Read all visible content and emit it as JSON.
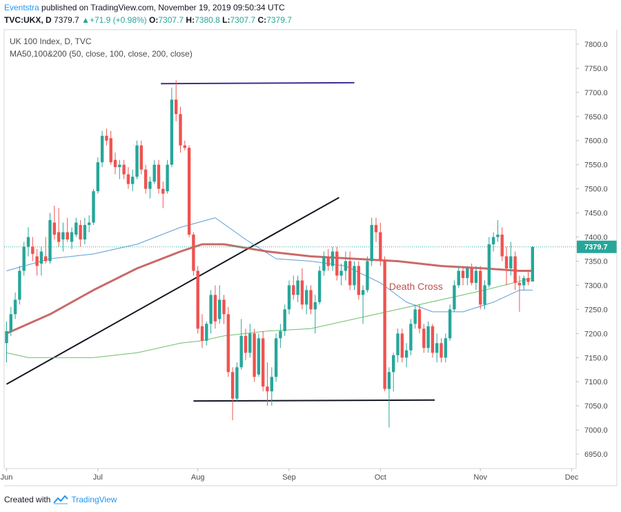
{
  "header": {
    "author": "Eventstra",
    "published_text": "published on TradingView.com, November 19, 2019 09:50:34 UTC",
    "symbol": "TVC:UKX, D",
    "last": "7379.7",
    "change_arrow": "▲",
    "change": "+71.9 (+0.98%)",
    "o_label": "O:",
    "o_value": "7307.7",
    "h_label": "H:",
    "h_value": "7380.8",
    "l_label": "L:",
    "l_value": "7307.7",
    "c_label": "C:",
    "c_value": "7379.7"
  },
  "legend": {
    "title": "UK 100 Index, D, TVC",
    "indicator": "MA50,100&200 (50, close, 100, close, 200, close)"
  },
  "footer": {
    "created_with": "Created with",
    "brand": "TradingView"
  },
  "colors": {
    "up": "#26a69a",
    "down": "#ef5350",
    "ma50": "#5b9bd5",
    "ma100": "#c0504d",
    "ma200": "#6abf69",
    "accent": "#2196f3"
  },
  "chart_data": {
    "type": "candlestick",
    "title": "UK 100 Index, D, TVC",
    "ylim": [
      6920,
      7830
    ],
    "y_ticks": [
      6950,
      7000,
      7050,
      7100,
      7150,
      7200,
      7250,
      7300,
      7350,
      7400,
      7450,
      7500,
      7550,
      7600,
      7650,
      7700,
      7750,
      7800
    ],
    "y_tick_labels": [
      "6950.0",
      "7000.0",
      "7050.0",
      "7100.0",
      "7150.0",
      "7200.0",
      "7250.0",
      "7300.0",
      "7350.0",
      "7400.0",
      "7450.0",
      "7500.0",
      "7550.0",
      "7600.0",
      "7650.0",
      "7700.0",
      "7750.0",
      "7800.0"
    ],
    "x_ticks": [
      {
        "label": "Jun",
        "i": 0
      },
      {
        "label": "Jul",
        "i": 21
      },
      {
        "label": "Aug",
        "i": 44
      },
      {
        "label": "Sep",
        "i": 65
      },
      {
        "label": "Oct",
        "i": 86
      },
      {
        "label": "Nov",
        "i": 109
      },
      {
        "label": "Dec",
        "i": 130
      }
    ],
    "last_price_label": "7379.7",
    "last_price": 7379.7,
    "annotation": {
      "text": "Death Cross",
      "i": 88,
      "y": 7298
    },
    "trendlines": [
      {
        "name": "resistance",
        "from": {
          "i": 35.5,
          "y": 7718
        },
        "to": {
          "i": 80,
          "y": 7720
        },
        "color": "#3f2b96"
      },
      {
        "name": "rising-trend",
        "from": {
          "i": 0,
          "y": 7095
        },
        "to": {
          "i": 76.5,
          "y": 7482
        },
        "color": "#131722"
      },
      {
        "name": "support",
        "from": {
          "i": 43,
          "y": 7060
        },
        "to": {
          "i": 98.5,
          "y": 7062
        },
        "color": "#131722"
      }
    ],
    "series": [
      {
        "name": "MA50",
        "x": [
          0,
          10,
          20,
          30,
          40,
          48,
          55,
          62,
          70,
          78,
          86,
          92,
          98,
          105,
          112,
          118,
          121
        ],
        "y": [
          7330,
          7355,
          7365,
          7385,
          7420,
          7440,
          7395,
          7355,
          7350,
          7340,
          7305,
          7265,
          7245,
          7245,
          7265,
          7290,
          7290
        ]
      },
      {
        "name": "MA100",
        "x": [
          0,
          10,
          20,
          30,
          40,
          45,
          50,
          60,
          70,
          80,
          90,
          100,
          110,
          118,
          121
        ],
        "y": [
          7200,
          7240,
          7290,
          7335,
          7370,
          7385,
          7385,
          7370,
          7360,
          7355,
          7350,
          7340,
          7335,
          7330,
          7330
        ]
      },
      {
        "name": "MA200",
        "x": [
          0,
          5,
          10,
          20,
          30,
          40,
          45,
          50,
          60,
          70,
          80,
          90,
          100,
          110,
          121
        ],
        "y": [
          7160,
          7150,
          7150,
          7150,
          7160,
          7180,
          7185,
          7195,
          7205,
          7210,
          7230,
          7250,
          7270,
          7290,
          7315
        ]
      }
    ],
    "candles": [
      {
        "i": 0,
        "o": 7180,
        "h": 7225,
        "l": 7140,
        "c": 7205
      },
      {
        "i": 1,
        "o": 7205,
        "h": 7255,
        "l": 7195,
        "c": 7240
      },
      {
        "i": 2,
        "o": 7240,
        "h": 7285,
        "l": 7230,
        "c": 7270
      },
      {
        "i": 3,
        "o": 7270,
        "h": 7340,
        "l": 7260,
        "c": 7330
      },
      {
        "i": 4,
        "o": 7330,
        "h": 7390,
        "l": 7320,
        "c": 7380
      },
      {
        "i": 5,
        "o": 7380,
        "h": 7420,
        "l": 7360,
        "c": 7400
      },
      {
        "i": 6,
        "o": 7380,
        "h": 7400,
        "l": 7350,
        "c": 7365
      },
      {
        "i": 7,
        "o": 7360,
        "h": 7375,
        "l": 7320,
        "c": 7340
      },
      {
        "i": 8,
        "o": 7345,
        "h": 7380,
        "l": 7320,
        "c": 7370
      },
      {
        "i": 9,
        "o": 7360,
        "h": 7400,
        "l": 7345,
        "c": 7350
      },
      {
        "i": 10,
        "o": 7350,
        "h": 7450,
        "l": 7345,
        "c": 7435
      },
      {
        "i": 11,
        "o": 7430,
        "h": 7465,
        "l": 7395,
        "c": 7405
      },
      {
        "i": 12,
        "o": 7410,
        "h": 7460,
        "l": 7380,
        "c": 7390
      },
      {
        "i": 13,
        "o": 7395,
        "h": 7430,
        "l": 7370,
        "c": 7410
      },
      {
        "i": 14,
        "o": 7410,
        "h": 7440,
        "l": 7390,
        "c": 7395
      },
      {
        "i": 15,
        "o": 7390,
        "h": 7420,
        "l": 7375,
        "c": 7410
      },
      {
        "i": 16,
        "o": 7405,
        "h": 7440,
        "l": 7400,
        "c": 7430
      },
      {
        "i": 17,
        "o": 7425,
        "h": 7435,
        "l": 7380,
        "c": 7395
      },
      {
        "i": 18,
        "o": 7395,
        "h": 7440,
        "l": 7385,
        "c": 7425
      },
      {
        "i": 19,
        "o": 7425,
        "h": 7445,
        "l": 7410,
        "c": 7430
      },
      {
        "i": 20,
        "o": 7430,
        "h": 7500,
        "l": 7425,
        "c": 7495
      },
      {
        "i": 21,
        "o": 7495,
        "h": 7565,
        "l": 7490,
        "c": 7555
      },
      {
        "i": 22,
        "o": 7555,
        "h": 7620,
        "l": 7545,
        "c": 7610
      },
      {
        "i": 23,
        "o": 7610,
        "h": 7625,
        "l": 7590,
        "c": 7600
      },
      {
        "i": 24,
        "o": 7605,
        "h": 7620,
        "l": 7550,
        "c": 7555
      },
      {
        "i": 25,
        "o": 7560,
        "h": 7575,
        "l": 7530,
        "c": 7545
      },
      {
        "i": 26,
        "o": 7545,
        "h": 7560,
        "l": 7520,
        "c": 7550
      },
      {
        "i": 27,
        "o": 7550,
        "h": 7560,
        "l": 7520,
        "c": 7530
      },
      {
        "i": 28,
        "o": 7530,
        "h": 7545,
        "l": 7500,
        "c": 7510
      },
      {
        "i": 29,
        "o": 7510,
        "h": 7540,
        "l": 7495,
        "c": 7525
      },
      {
        "i": 30,
        "o": 7525,
        "h": 7600,
        "l": 7520,
        "c": 7590
      },
      {
        "i": 31,
        "o": 7590,
        "h": 7600,
        "l": 7530,
        "c": 7540
      },
      {
        "i": 32,
        "o": 7540,
        "h": 7550,
        "l": 7490,
        "c": 7500
      },
      {
        "i": 33,
        "o": 7500,
        "h": 7525,
        "l": 7480,
        "c": 7515
      },
      {
        "i": 34,
        "o": 7515,
        "h": 7560,
        "l": 7510,
        "c": 7550
      },
      {
        "i": 35,
        "o": 7550,
        "h": 7560,
        "l": 7490,
        "c": 7500
      },
      {
        "i": 36,
        "o": 7500,
        "h": 7515,
        "l": 7460,
        "c": 7490
      },
      {
        "i": 37,
        "o": 7495,
        "h": 7560,
        "l": 7490,
        "c": 7550
      },
      {
        "i": 38,
        "o": 7550,
        "h": 7710,
        "l": 7545,
        "c": 7685
      },
      {
        "i": 39,
        "o": 7685,
        "h": 7725,
        "l": 7640,
        "c": 7655
      },
      {
        "i": 40,
        "o": 7655,
        "h": 7670,
        "l": 7575,
        "c": 7590
      },
      {
        "i": 41,
        "o": 7590,
        "h": 7600,
        "l": 7580,
        "c": 7585
      },
      {
        "i": 42,
        "o": 7585,
        "h": 7590,
        "l": 7400,
        "c": 7405
      },
      {
        "i": 43,
        "o": 7405,
        "h": 7410,
        "l": 7320,
        "c": 7330
      },
      {
        "i": 44,
        "o": 7330,
        "h": 7340,
        "l": 7200,
        "c": 7210
      },
      {
        "i": 45,
        "o": 7215,
        "h": 7240,
        "l": 7170,
        "c": 7185
      },
      {
        "i": 46,
        "o": 7185,
        "h": 7225,
        "l": 7175,
        "c": 7220
      },
      {
        "i": 47,
        "o": 7220,
        "h": 7290,
        "l": 7200,
        "c": 7280
      },
      {
        "i": 48,
        "o": 7280,
        "h": 7300,
        "l": 7210,
        "c": 7225
      },
      {
        "i": 49,
        "o": 7230,
        "h": 7300,
        "l": 7220,
        "c": 7270
      },
      {
        "i": 50,
        "o": 7270,
        "h": 7280,
        "l": 7220,
        "c": 7240
      },
      {
        "i": 51,
        "o": 7240,
        "h": 7255,
        "l": 7110,
        "c": 7120
      },
      {
        "i": 52,
        "o": 7120,
        "h": 7130,
        "l": 7020,
        "c": 7065
      },
      {
        "i": 53,
        "o": 7065,
        "h": 7140,
        "l": 7060,
        "c": 7130
      },
      {
        "i": 54,
        "o": 7130,
        "h": 7230,
        "l": 7125,
        "c": 7195
      },
      {
        "i": 55,
        "o": 7195,
        "h": 7210,
        "l": 7145,
        "c": 7160
      },
      {
        "i": 56,
        "o": 7160,
        "h": 7220,
        "l": 7150,
        "c": 7200
      },
      {
        "i": 57,
        "o": 7200,
        "h": 7210,
        "l": 7100,
        "c": 7110
      },
      {
        "i": 58,
        "o": 7115,
        "h": 7200,
        "l": 7110,
        "c": 7190
      },
      {
        "i": 59,
        "o": 7190,
        "h": 7205,
        "l": 7080,
        "c": 7090
      },
      {
        "i": 60,
        "o": 7090,
        "h": 7140,
        "l": 7050,
        "c": 7080
      },
      {
        "i": 61,
        "o": 7080,
        "h": 7130,
        "l": 7050,
        "c": 7110
      },
      {
        "i": 62,
        "o": 7110,
        "h": 7200,
        "l": 7100,
        "c": 7190
      },
      {
        "i": 63,
        "o": 7190,
        "h": 7220,
        "l": 7170,
        "c": 7205
      },
      {
        "i": 64,
        "o": 7205,
        "h": 7260,
        "l": 7195,
        "c": 7250
      },
      {
        "i": 65,
        "o": 7250,
        "h": 7310,
        "l": 7240,
        "c": 7300
      },
      {
        "i": 66,
        "o": 7300,
        "h": 7320,
        "l": 7270,
        "c": 7280
      },
      {
        "i": 67,
        "o": 7280,
        "h": 7320,
        "l": 7265,
        "c": 7310
      },
      {
        "i": 68,
        "o": 7310,
        "h": 7335,
        "l": 7250,
        "c": 7260
      },
      {
        "i": 69,
        "o": 7260,
        "h": 7300,
        "l": 7240,
        "c": 7290
      },
      {
        "i": 70,
        "o": 7290,
        "h": 7300,
        "l": 7240,
        "c": 7250
      },
      {
        "i": 71,
        "o": 7250,
        "h": 7280,
        "l": 7200,
        "c": 7265
      },
      {
        "i": 72,
        "o": 7265,
        "h": 7340,
        "l": 7260,
        "c": 7330
      },
      {
        "i": 73,
        "o": 7330,
        "h": 7370,
        "l": 7320,
        "c": 7360
      },
      {
        "i": 74,
        "o": 7360,
        "h": 7375,
        "l": 7330,
        "c": 7340
      },
      {
        "i": 75,
        "o": 7340,
        "h": 7380,
        "l": 7330,
        "c": 7370
      },
      {
        "i": 76,
        "o": 7370,
        "h": 7380,
        "l": 7310,
        "c": 7320
      },
      {
        "i": 77,
        "o": 7320,
        "h": 7345,
        "l": 7300,
        "c": 7330
      },
      {
        "i": 78,
        "o": 7330,
        "h": 7370,
        "l": 7310,
        "c": 7350
      },
      {
        "i": 79,
        "o": 7350,
        "h": 7370,
        "l": 7290,
        "c": 7300
      },
      {
        "i": 80,
        "o": 7300,
        "h": 7350,
        "l": 7290,
        "c": 7340
      },
      {
        "i": 81,
        "o": 7340,
        "h": 7350,
        "l": 7270,
        "c": 7280
      },
      {
        "i": 82,
        "o": 7280,
        "h": 7300,
        "l": 7220,
        "c": 7290
      },
      {
        "i": 83,
        "o": 7290,
        "h": 7360,
        "l": 7285,
        "c": 7350
      },
      {
        "i": 84,
        "o": 7350,
        "h": 7440,
        "l": 7340,
        "c": 7425
      },
      {
        "i": 85,
        "o": 7425,
        "h": 7440,
        "l": 7390,
        "c": 7410
      },
      {
        "i": 86,
        "o": 7410,
        "h": 7430,
        "l": 7340,
        "c": 7350
      },
      {
        "i": 87,
        "o": 7350,
        "h": 7360,
        "l": 7080,
        "c": 7085
      },
      {
        "i": 88,
        "o": 7085,
        "h": 7130,
        "l": 7005,
        "c": 7120
      },
      {
        "i": 89,
        "o": 7120,
        "h": 7160,
        "l": 7080,
        "c": 7155
      },
      {
        "i": 90,
        "o": 7155,
        "h": 7210,
        "l": 7140,
        "c": 7200
      },
      {
        "i": 91,
        "o": 7200,
        "h": 7210,
        "l": 7140,
        "c": 7150
      },
      {
        "i": 92,
        "o": 7150,
        "h": 7180,
        "l": 7130,
        "c": 7165
      },
      {
        "i": 93,
        "o": 7165,
        "h": 7230,
        "l": 7155,
        "c": 7220
      },
      {
        "i": 94,
        "o": 7220,
        "h": 7260,
        "l": 7210,
        "c": 7250
      },
      {
        "i": 95,
        "o": 7250,
        "h": 7260,
        "l": 7200,
        "c": 7210
      },
      {
        "i": 96,
        "o": 7210,
        "h": 7220,
        "l": 7160,
        "c": 7170
      },
      {
        "i": 97,
        "o": 7170,
        "h": 7225,
        "l": 7160,
        "c": 7215
      },
      {
        "i": 98,
        "o": 7215,
        "h": 7220,
        "l": 7150,
        "c": 7160
      },
      {
        "i": 99,
        "o": 7160,
        "h": 7200,
        "l": 7140,
        "c": 7180
      },
      {
        "i": 100,
        "o": 7180,
        "h": 7190,
        "l": 7140,
        "c": 7150
      },
      {
        "i": 101,
        "o": 7150,
        "h": 7200,
        "l": 7140,
        "c": 7190
      },
      {
        "i": 102,
        "o": 7190,
        "h": 7260,
        "l": 7185,
        "c": 7250
      },
      {
        "i": 103,
        "o": 7250,
        "h": 7310,
        "l": 7245,
        "c": 7300
      },
      {
        "i": 104,
        "o": 7300,
        "h": 7340,
        "l": 7295,
        "c": 7330
      },
      {
        "i": 105,
        "o": 7330,
        "h": 7340,
        "l": 7300,
        "c": 7315
      },
      {
        "i": 106,
        "o": 7315,
        "h": 7340,
        "l": 7300,
        "c": 7335
      },
      {
        "i": 107,
        "o": 7335,
        "h": 7345,
        "l": 7300,
        "c": 7305
      },
      {
        "i": 108,
        "o": 7305,
        "h": 7340,
        "l": 7290,
        "c": 7330
      },
      {
        "i": 109,
        "o": 7330,
        "h": 7340,
        "l": 7250,
        "c": 7260
      },
      {
        "i": 110,
        "o": 7260,
        "h": 7310,
        "l": 7250,
        "c": 7300
      },
      {
        "i": 111,
        "o": 7300,
        "h": 7400,
        "l": 7295,
        "c": 7385
      },
      {
        "i": 112,
        "o": 7385,
        "h": 7410,
        "l": 7370,
        "c": 7400
      },
      {
        "i": 113,
        "o": 7400,
        "h": 7435,
        "l": 7390,
        "c": 7405
      },
      {
        "i": 114,
        "o": 7405,
        "h": 7420,
        "l": 7350,
        "c": 7360
      },
      {
        "i": 115,
        "o": 7360,
        "h": 7380,
        "l": 7300,
        "c": 7335
      },
      {
        "i": 116,
        "o": 7335,
        "h": 7390,
        "l": 7320,
        "c": 7360
      },
      {
        "i": 117,
        "o": 7360,
        "h": 7370,
        "l": 7290,
        "c": 7305
      },
      {
        "i": 118,
        "o": 7305,
        "h": 7320,
        "l": 7245,
        "c": 7300
      },
      {
        "i": 119,
        "o": 7300,
        "h": 7320,
        "l": 7290,
        "c": 7315
      },
      {
        "i": 120,
        "o": 7315,
        "h": 7330,
        "l": 7300,
        "c": 7307
      },
      {
        "i": 121,
        "o": 7307.7,
        "h": 7380.8,
        "l": 7307.7,
        "c": 7379.7
      }
    ]
  }
}
